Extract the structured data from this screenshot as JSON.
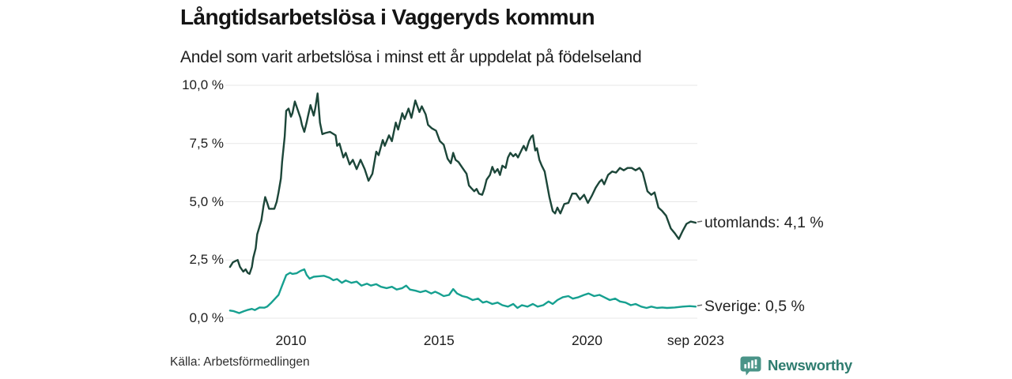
{
  "source_note": "Källa: Arbetsförmedlingen",
  "branding": {
    "wordmark": "Newsworthy",
    "icon": "bar-chart-bubble-icon",
    "icon_color": "#4a9488",
    "wordmark_color": "#2e7c6f"
  },
  "chart_data": {
    "type": "line",
    "title": "Långtidsarbetslösa i Vaggeryds kommun",
    "subtitle": "Andel som varit arbetslösa i minst ett år uppdelat på födelseland",
    "grid": "horizontal",
    "legend_position": "end-of-line-labels",
    "x_axis": {
      "range": [
        2007.9,
        2023.75
      ],
      "ticks": [
        {
          "label": "2010",
          "value": 2010
        },
        {
          "label": "2015",
          "value": 2015
        },
        {
          "label": "2020",
          "value": 2020
        },
        {
          "label": "sep 2023",
          "value": 2023.67
        }
      ]
    },
    "y_axis": {
      "unit": "%",
      "range": [
        0,
        10
      ],
      "ticks": [
        {
          "label": "10,0 %",
          "value": 10
        },
        {
          "label": "7,5 %",
          "value": 7.5
        },
        {
          "label": "5,0 %",
          "value": 5
        },
        {
          "label": "2,5 %",
          "value": 2.5
        },
        {
          "label": "0,0 %",
          "value": 0
        }
      ]
    },
    "series": [
      {
        "id": "utomlands",
        "name": "utomlands",
        "end_label": "utomlands: 4,1 %",
        "latest_value": 4.1,
        "color": "#1c4639",
        "points": [
          [
            2007.94,
            2.2
          ],
          [
            2008.04,
            2.4
          ],
          [
            2008.12,
            2.45
          ],
          [
            2008.2,
            2.5
          ],
          [
            2008.28,
            2.2
          ],
          [
            2008.39,
            2.0
          ],
          [
            2008.47,
            2.1
          ],
          [
            2008.54,
            1.95
          ],
          [
            2008.6,
            1.9
          ],
          [
            2008.68,
            2.2
          ],
          [
            2008.73,
            2.6
          ],
          [
            2008.81,
            3.0
          ],
          [
            2008.86,
            3.6
          ],
          [
            2009.0,
            4.2
          ],
          [
            2009.07,
            4.8
          ],
          [
            2009.13,
            5.2
          ],
          [
            2009.2,
            4.95
          ],
          [
            2009.26,
            4.7
          ],
          [
            2009.44,
            4.7
          ],
          [
            2009.52,
            5.0
          ],
          [
            2009.58,
            5.4
          ],
          [
            2009.66,
            6.0
          ],
          [
            2009.7,
            6.7
          ],
          [
            2009.79,
            7.8
          ],
          [
            2009.84,
            8.9
          ],
          [
            2009.92,
            9.0
          ],
          [
            2010.0,
            8.65
          ],
          [
            2010.05,
            8.8
          ],
          [
            2010.13,
            9.3
          ],
          [
            2010.24,
            8.9
          ],
          [
            2010.32,
            8.6
          ],
          [
            2010.37,
            8.3
          ],
          [
            2010.45,
            8.0
          ],
          [
            2010.53,
            8.4
          ],
          [
            2010.58,
            8.7
          ],
          [
            2010.66,
            9.15
          ],
          [
            2010.77,
            8.7
          ],
          [
            2010.82,
            9.0
          ],
          [
            2010.9,
            9.65
          ],
          [
            2010.98,
            8.4
          ],
          [
            2011.06,
            7.9
          ],
          [
            2011.16,
            7.95
          ],
          [
            2011.32,
            8.0
          ],
          [
            2011.51,
            7.85
          ],
          [
            2011.56,
            7.4
          ],
          [
            2011.64,
            7.5
          ],
          [
            2011.77,
            6.9
          ],
          [
            2011.85,
            7.1
          ],
          [
            2011.98,
            6.6
          ],
          [
            2012.09,
            6.8
          ],
          [
            2012.22,
            6.4
          ],
          [
            2012.35,
            6.8
          ],
          [
            2012.49,
            6.4
          ],
          [
            2012.62,
            5.9
          ],
          [
            2012.75,
            6.2
          ],
          [
            2012.88,
            7.15
          ],
          [
            2012.96,
            7.0
          ],
          [
            2013.1,
            7.65
          ],
          [
            2013.17,
            7.4
          ],
          [
            2013.31,
            7.85
          ],
          [
            2013.41,
            7.6
          ],
          [
            2013.54,
            8.4
          ],
          [
            2013.62,
            8.1
          ],
          [
            2013.76,
            8.8
          ],
          [
            2013.84,
            8.55
          ],
          [
            2013.97,
            9.0
          ],
          [
            2014.07,
            8.6
          ],
          [
            2014.2,
            9.35
          ],
          [
            2014.34,
            8.85
          ],
          [
            2014.42,
            9.1
          ],
          [
            2014.55,
            8.75
          ],
          [
            2014.63,
            8.3
          ],
          [
            2014.76,
            8.15
          ],
          [
            2014.9,
            8.05
          ],
          [
            2015.03,
            7.6
          ],
          [
            2015.16,
            7.45
          ],
          [
            2015.29,
            6.85
          ],
          [
            2015.4,
            6.65
          ],
          [
            2015.48,
            7.1
          ],
          [
            2015.56,
            6.8
          ],
          [
            2015.66,
            6.7
          ],
          [
            2015.74,
            6.55
          ],
          [
            2015.82,
            6.4
          ],
          [
            2015.93,
            6.2
          ],
          [
            2016.01,
            5.7
          ],
          [
            2016.08,
            5.6
          ],
          [
            2016.19,
            5.45
          ],
          [
            2016.27,
            5.55
          ],
          [
            2016.35,
            5.35
          ],
          [
            2016.46,
            5.3
          ],
          [
            2016.53,
            5.55
          ],
          [
            2016.61,
            5.95
          ],
          [
            2016.72,
            6.15
          ],
          [
            2016.8,
            6.5
          ],
          [
            2016.88,
            6.25
          ],
          [
            2016.98,
            6.4
          ],
          [
            2017.06,
            6.15
          ],
          [
            2017.14,
            6.55
          ],
          [
            2017.25,
            6.45
          ],
          [
            2017.33,
            6.9
          ],
          [
            2017.41,
            7.1
          ],
          [
            2017.51,
            6.95
          ],
          [
            2017.59,
            7.05
          ],
          [
            2017.67,
            6.9
          ],
          [
            2017.78,
            7.2
          ],
          [
            2017.86,
            7.4
          ],
          [
            2017.94,
            7.2
          ],
          [
            2018.04,
            7.6
          ],
          [
            2018.12,
            7.8
          ],
          [
            2018.17,
            7.85
          ],
          [
            2018.25,
            7.2
          ],
          [
            2018.31,
            7.3
          ],
          [
            2018.39,
            6.8
          ],
          [
            2018.47,
            6.55
          ],
          [
            2018.57,
            6.3
          ],
          [
            2018.65,
            5.75
          ],
          [
            2018.73,
            5.2
          ],
          [
            2018.84,
            4.6
          ],
          [
            2018.92,
            4.5
          ],
          [
            2019.0,
            4.75
          ],
          [
            2019.1,
            4.5
          ],
          [
            2019.23,
            4.9
          ],
          [
            2019.37,
            4.95
          ],
          [
            2019.5,
            5.35
          ],
          [
            2019.63,
            5.35
          ],
          [
            2019.76,
            5.1
          ],
          [
            2019.9,
            5.3
          ],
          [
            2020.03,
            4.95
          ],
          [
            2020.16,
            5.25
          ],
          [
            2020.29,
            5.6
          ],
          [
            2020.42,
            5.85
          ],
          [
            2020.5,
            5.95
          ],
          [
            2020.58,
            5.75
          ],
          [
            2020.71,
            6.15
          ],
          [
            2020.85,
            6.3
          ],
          [
            2020.98,
            6.25
          ],
          [
            2021.11,
            6.45
          ],
          [
            2021.24,
            6.35
          ],
          [
            2021.37,
            6.45
          ],
          [
            2021.51,
            6.45
          ],
          [
            2021.64,
            6.35
          ],
          [
            2021.77,
            6.45
          ],
          [
            2021.88,
            6.25
          ],
          [
            2022.04,
            5.45
          ],
          [
            2022.17,
            5.3
          ],
          [
            2022.28,
            5.4
          ],
          [
            2022.41,
            4.75
          ],
          [
            2022.54,
            4.6
          ],
          [
            2022.67,
            4.4
          ],
          [
            2022.83,
            3.85
          ],
          [
            2022.96,
            3.65
          ],
          [
            2023.1,
            3.4
          ],
          [
            2023.23,
            3.75
          ],
          [
            2023.36,
            4.05
          ],
          [
            2023.5,
            4.15
          ],
          [
            2023.67,
            4.1
          ]
        ]
      },
      {
        "id": "sverige",
        "name": "Sverige",
        "end_label": "Sverige: 0,5 %",
        "latest_value": 0.5,
        "color": "#16a090",
        "points": [
          [
            2007.94,
            0.33
          ],
          [
            2008.07,
            0.3
          ],
          [
            2008.25,
            0.22
          ],
          [
            2008.41,
            0.3
          ],
          [
            2008.52,
            0.35
          ],
          [
            2008.68,
            0.4
          ],
          [
            2008.78,
            0.35
          ],
          [
            2008.94,
            0.46
          ],
          [
            2009.1,
            0.45
          ],
          [
            2009.2,
            0.5
          ],
          [
            2009.34,
            0.67
          ],
          [
            2009.47,
            0.85
          ],
          [
            2009.58,
            1.0
          ],
          [
            2009.7,
            1.4
          ],
          [
            2009.84,
            1.85
          ],
          [
            2009.97,
            1.95
          ],
          [
            2010.05,
            1.9
          ],
          [
            2010.19,
            1.93
          ],
          [
            2010.32,
            2.03
          ],
          [
            2010.45,
            2.1
          ],
          [
            2010.53,
            1.86
          ],
          [
            2010.63,
            1.7
          ],
          [
            2010.77,
            1.78
          ],
          [
            2010.93,
            1.8
          ],
          [
            2011.11,
            1.82
          ],
          [
            2011.3,
            1.74
          ],
          [
            2011.43,
            1.63
          ],
          [
            2011.56,
            1.68
          ],
          [
            2011.72,
            1.52
          ],
          [
            2011.85,
            1.62
          ],
          [
            2012.04,
            1.52
          ],
          [
            2012.22,
            1.57
          ],
          [
            2012.38,
            1.4
          ],
          [
            2012.57,
            1.48
          ],
          [
            2012.7,
            1.4
          ],
          [
            2012.88,
            1.46
          ],
          [
            2013.04,
            1.35
          ],
          [
            2013.23,
            1.29
          ],
          [
            2013.41,
            1.35
          ],
          [
            2013.57,
            1.23
          ],
          [
            2013.76,
            1.29
          ],
          [
            2013.89,
            1.4
          ],
          [
            2014.02,
            1.23
          ],
          [
            2014.21,
            1.18
          ],
          [
            2014.37,
            1.12
          ],
          [
            2014.55,
            1.18
          ],
          [
            2014.74,
            1.06
          ],
          [
            2014.87,
            1.14
          ],
          [
            2015.0,
            1.06
          ],
          [
            2015.16,
            0.95
          ],
          [
            2015.34,
            1.0
          ],
          [
            2015.48,
            1.25
          ],
          [
            2015.61,
            1.06
          ],
          [
            2015.79,
            0.95
          ],
          [
            2015.95,
            0.9
          ],
          [
            2016.14,
            0.78
          ],
          [
            2016.32,
            0.84
          ],
          [
            2016.48,
            0.67
          ],
          [
            2016.61,
            0.72
          ],
          [
            2016.8,
            0.61
          ],
          [
            2016.98,
            0.67
          ],
          [
            2017.14,
            0.56
          ],
          [
            2017.33,
            0.5
          ],
          [
            2017.51,
            0.61
          ],
          [
            2017.65,
            0.44
          ],
          [
            2017.8,
            0.56
          ],
          [
            2017.99,
            0.5
          ],
          [
            2018.17,
            0.61
          ],
          [
            2018.33,
            0.5
          ],
          [
            2018.52,
            0.56
          ],
          [
            2018.7,
            0.72
          ],
          [
            2018.84,
            0.61
          ],
          [
            2019.0,
            0.78
          ],
          [
            2019.18,
            0.9
          ],
          [
            2019.37,
            0.95
          ],
          [
            2019.52,
            0.84
          ],
          [
            2019.71,
            0.9
          ],
          [
            2019.9,
            1.0
          ],
          [
            2020.05,
            1.06
          ],
          [
            2020.24,
            0.95
          ],
          [
            2020.42,
            1.0
          ],
          [
            2020.58,
            0.9
          ],
          [
            2020.77,
            0.78
          ],
          [
            2020.95,
            0.84
          ],
          [
            2021.11,
            0.72
          ],
          [
            2021.3,
            0.67
          ],
          [
            2021.48,
            0.56
          ],
          [
            2021.64,
            0.61
          ],
          [
            2021.83,
            0.5
          ],
          [
            2022.01,
            0.44
          ],
          [
            2022.17,
            0.5
          ],
          [
            2022.36,
            0.44
          ],
          [
            2022.54,
            0.46
          ],
          [
            2022.7,
            0.44
          ],
          [
            2022.96,
            0.46
          ],
          [
            2023.23,
            0.5
          ],
          [
            2023.47,
            0.52
          ],
          [
            2023.67,
            0.5
          ]
        ]
      }
    ]
  }
}
